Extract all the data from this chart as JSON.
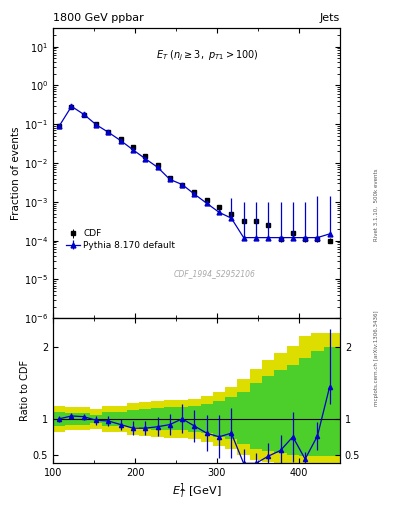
{
  "title_left": "1800 GeV ppbar",
  "title_right": "Jets",
  "watermark": "CDF_1994_S2952106",
  "right_label": "Rivet 3.1.10,  500k events",
  "right_label2": "[arXiv:1306.3436]",
  "mcplots_label": "mcplots.cern.ch",
  "xlabel": "$E^1_T$ [GeV]",
  "ylabel_main": "Fraction of events",
  "ylabel_ratio": "Ratio to CDF",
  "xlim": [
    100,
    450
  ],
  "ylim_main": [
    1e-06,
    30
  ],
  "ylim_ratio": [
    0.38,
    2.4
  ],
  "cdf_x": [
    107.5,
    122.5,
    137.5,
    152.5,
    167.5,
    182.5,
    197.5,
    212.5,
    227.5,
    242.5,
    257.5,
    272.5,
    287.5,
    302.5,
    317.5,
    332.5,
    347.5,
    362.5,
    377.5,
    392.5,
    407.5,
    422.5,
    437.5
  ],
  "cdf_y": [
    0.09,
    0.28,
    0.175,
    0.1,
    0.064,
    0.042,
    0.026,
    0.015,
    0.0088,
    0.0042,
    0.0028,
    0.00175,
    0.00115,
    0.00072,
    0.00048,
    0.00032,
    0.00032,
    0.00025,
    0.00011,
    0.00016,
    0.00011,
    0.00011,
    0.0001
  ],
  "cdf_yerrlo": [
    0.008,
    0.018,
    0.012,
    0.008,
    0.005,
    0.004,
    0.0025,
    0.0015,
    0.0008,
    0.0004,
    0.0003,
    0.00018,
    0.00012,
    8e-05,
    5e-05,
    4e-05,
    4e-05,
    3e-05,
    1.5e-05,
    2e-05,
    1.5e-05,
    1.5e-05,
    1.5e-05
  ],
  "cdf_yerrhi": [
    0.008,
    0.018,
    0.012,
    0.008,
    0.005,
    0.004,
    0.0025,
    0.0015,
    0.0008,
    0.0004,
    0.0003,
    0.00018,
    0.00012,
    8e-05,
    5e-05,
    4e-05,
    4e-05,
    3e-05,
    1.5e-05,
    2e-05,
    1.5e-05,
    1.5e-05,
    1.5e-05
  ],
  "mc_x": [
    107.5,
    122.5,
    137.5,
    152.5,
    167.5,
    182.5,
    197.5,
    212.5,
    227.5,
    242.5,
    257.5,
    272.5,
    287.5,
    302.5,
    317.5,
    332.5,
    347.5,
    362.5,
    377.5,
    392.5,
    407.5,
    422.5,
    437.5
  ],
  "mc_y": [
    0.09,
    0.29,
    0.18,
    0.098,
    0.062,
    0.038,
    0.022,
    0.013,
    0.0078,
    0.0038,
    0.0028,
    0.00158,
    0.00092,
    0.00054,
    0.00038,
    0.00012,
    0.00012,
    0.00012,
    0.00012,
    0.00012,
    0.00012,
    0.00012,
    0.00015
  ],
  "mc_yerrlo": [
    0.004,
    0.012,
    0.01,
    0.006,
    0.004,
    0.003,
    0.002,
    0.001,
    0.0006,
    0.0003,
    0.0002,
    0.00012,
    8e-05,
    5e-05,
    3e-05,
    1e-05,
    1e-05,
    1e-05,
    1e-05,
    1e-05,
    1e-05,
    1e-05,
    1e-05
  ],
  "mc_yerrhi": [
    0.004,
    0.012,
    0.01,
    0.006,
    0.004,
    0.003,
    0.002,
    0.001,
    0.0006,
    0.0003,
    0.0002,
    0.00012,
    8e-05,
    5e-05,
    0.0009,
    0.0009,
    0.0009,
    0.0009,
    0.0009,
    0.0009,
    0.0009,
    0.0013,
    0.0013
  ],
  "ratio_x": [
    107.5,
    122.5,
    137.5,
    152.5,
    167.5,
    182.5,
    197.5,
    212.5,
    227.5,
    242.5,
    257.5,
    272.5,
    287.5,
    302.5,
    317.5,
    332.5,
    347.5,
    362.5,
    377.5,
    392.5,
    407.5,
    422.5,
    437.5
  ],
  "ratio_y": [
    1.0,
    1.04,
    1.03,
    0.98,
    0.97,
    0.92,
    0.87,
    0.87,
    0.89,
    0.92,
    1.0,
    0.9,
    0.8,
    0.75,
    0.8,
    0.38,
    0.38,
    0.48,
    0.56,
    0.75,
    0.44,
    0.76,
    1.45
  ],
  "ratio_yerrlo": [
    0.04,
    0.04,
    0.04,
    0.06,
    0.07,
    0.08,
    0.1,
    0.1,
    0.13,
    0.15,
    0.2,
    0.22,
    0.25,
    0.3,
    0.35,
    0.2,
    0.15,
    0.18,
    0.22,
    0.35,
    0.1,
    0.2,
    0.25
  ],
  "ratio_yerrhi": [
    0.04,
    0.04,
    0.04,
    0.06,
    0.07,
    0.08,
    0.1,
    0.1,
    0.13,
    0.15,
    0.2,
    0.22,
    0.25,
    0.3,
    0.35,
    0.2,
    0.15,
    0.18,
    0.22,
    0.35,
    0.1,
    0.2,
    0.8
  ],
  "green_band_edges": [
    100,
    115,
    130,
    145,
    160,
    175,
    190,
    205,
    220,
    235,
    250,
    265,
    280,
    295,
    310,
    325,
    340,
    355,
    370,
    385,
    400,
    415,
    430,
    450
  ],
  "green_lo": [
    0.9,
    0.92,
    0.92,
    0.94,
    0.9,
    0.9,
    0.88,
    0.86,
    0.85,
    0.84,
    0.84,
    0.82,
    0.8,
    0.75,
    0.72,
    0.65,
    0.58,
    0.55,
    0.52,
    0.5,
    0.48,
    0.48,
    0.48,
    0.48
  ],
  "green_hi": [
    1.1,
    1.08,
    1.08,
    1.06,
    1.1,
    1.1,
    1.12,
    1.14,
    1.15,
    1.16,
    1.16,
    1.18,
    1.2,
    1.25,
    1.3,
    1.38,
    1.5,
    1.6,
    1.68,
    1.75,
    1.85,
    1.95,
    2.0,
    2.0
  ],
  "yellow_band_edges": [
    100,
    115,
    130,
    145,
    160,
    175,
    190,
    205,
    220,
    235,
    250,
    265,
    280,
    295,
    310,
    325,
    340,
    355,
    370,
    385,
    400,
    415,
    430,
    450
  ],
  "yellow_lo": [
    0.82,
    0.84,
    0.84,
    0.86,
    0.82,
    0.82,
    0.78,
    0.76,
    0.75,
    0.74,
    0.74,
    0.72,
    0.68,
    0.62,
    0.58,
    0.5,
    0.42,
    0.4,
    0.38,
    0.36,
    0.33,
    0.33,
    0.33,
    0.33
  ],
  "yellow_hi": [
    1.18,
    1.16,
    1.16,
    1.14,
    1.18,
    1.18,
    1.22,
    1.24,
    1.25,
    1.26,
    1.26,
    1.28,
    1.32,
    1.38,
    1.45,
    1.55,
    1.7,
    1.82,
    1.92,
    2.02,
    2.15,
    2.2,
    2.2,
    2.2
  ],
  "mc_color": "#0000cc",
  "cdf_color": "#000000",
  "green_color": "#33cc33",
  "yellow_color": "#dddd00",
  "bg_color": "#ffffff"
}
